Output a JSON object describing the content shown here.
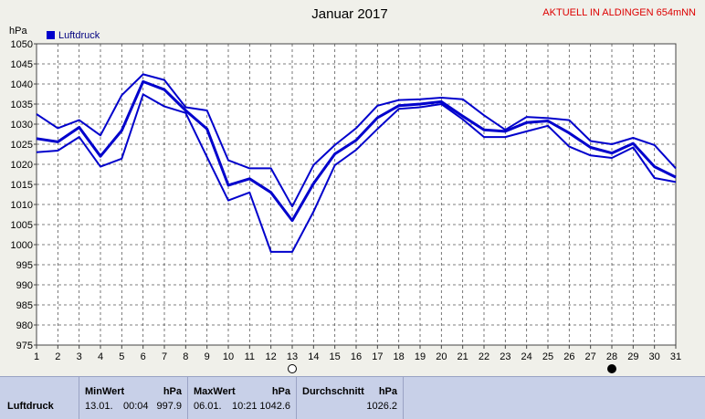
{
  "chart_data": {
    "type": "line",
    "title": "Januar 2017",
    "ylabel": "hPa",
    "legend": {
      "label": "Luftdruck",
      "color": "#0000cc",
      "position": "top-left"
    },
    "station_label": "AKTUELL IN ALDINGEN 654mNN",
    "x": [
      1,
      2,
      3,
      4,
      5,
      6,
      7,
      8,
      9,
      10,
      11,
      12,
      13,
      14,
      15,
      16,
      17,
      18,
      19,
      20,
      21,
      22,
      23,
      24,
      25,
      26,
      27,
      28,
      29,
      30,
      31
    ],
    "ylim": [
      975,
      1050
    ],
    "yticks": [
      975,
      980,
      985,
      990,
      995,
      1000,
      1005,
      1010,
      1015,
      1020,
      1025,
      1030,
      1035,
      1040,
      1045,
      1050
    ],
    "grid": true,
    "series": [
      {
        "role": "max",
        "values": [
          1032.5,
          1029,
          1031,
          1027.2,
          1037.2,
          1042.4,
          1041,
          1034.2,
          1033.4,
          1021,
          1019,
          1019,
          1009.5,
          1019.8,
          1024.8,
          1029,
          1034.6,
          1036,
          1036.2,
          1036.6,
          1036.2,
          1032.2,
          1028.6,
          1031.8,
          1031.5,
          1031,
          1025.8,
          1025,
          1026.6,
          1024.8,
          1019
        ]
      },
      {
        "role": "mean",
        "values": [
          1026.4,
          1025.6,
          1029.2,
          1022,
          1028.4,
          1040.6,
          1038.6,
          1033.4,
          1028.8,
          1014.8,
          1016.4,
          1013,
          1006,
          1015.2,
          1022.6,
          1026,
          1031.6,
          1034.6,
          1035,
          1035.6,
          1032,
          1028.6,
          1028.2,
          1030.4,
          1030.8,
          1027.8,
          1024.2,
          1022.8,
          1025.2,
          1019.4,
          1016.8
        ]
      },
      {
        "role": "min",
        "values": [
          1023,
          1023.4,
          1026.8,
          1019.4,
          1021.4,
          1037.4,
          1034.4,
          1032.8,
          1021.8,
          1011,
          1013,
          998.2,
          998.2,
          1008.2,
          1019.8,
          1023.6,
          1028.8,
          1033.8,
          1034.2,
          1035,
          1031.2,
          1026.8,
          1026.8,
          1028.2,
          1029.6,
          1024.4,
          1022.2,
          1021.6,
          1024.2,
          1016.6,
          1015.6
        ]
      }
    ],
    "moon_markers": [
      {
        "day": 13,
        "phase": "full"
      },
      {
        "day": 28,
        "phase": "new"
      }
    ]
  },
  "stats": {
    "row_label": "Luftdruck",
    "min": {
      "head": "MinWert",
      "unit": "hPa",
      "date": "13.01.",
      "time": "00:04",
      "value": "997.9"
    },
    "max": {
      "head": "MaxWert",
      "unit": "hPa",
      "date": "06.01.",
      "time": "10:21",
      "value": "1042.6"
    },
    "avg": {
      "head": "Durchschnitt",
      "unit": "hPa",
      "value": "1026.2"
    }
  },
  "colors": {
    "plot_bg": "#ffffff",
    "line": "#0000cc",
    "grid": "#555555",
    "station_text": "#dd0000",
    "panel_bg": "#c8d0e8"
  }
}
